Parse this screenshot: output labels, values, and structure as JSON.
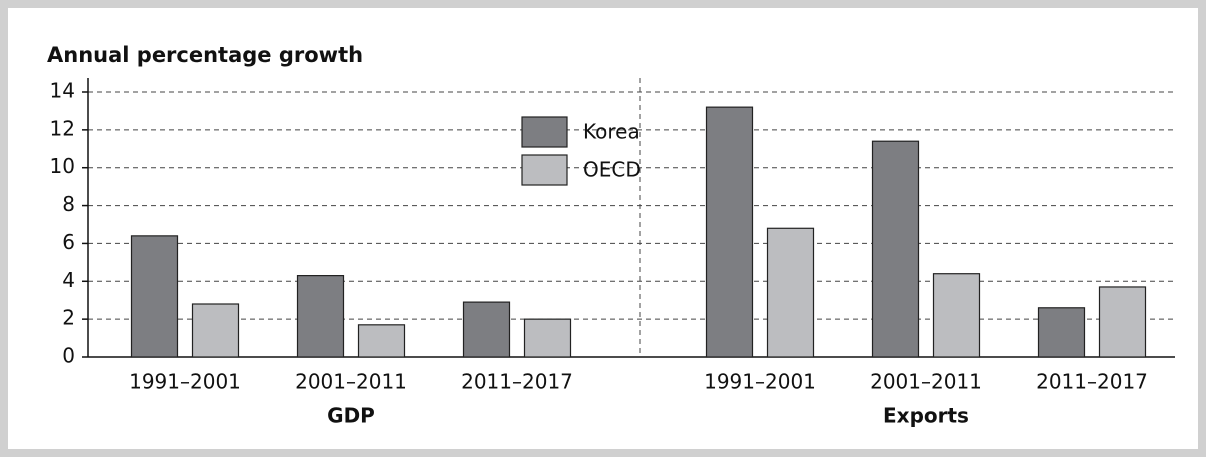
{
  "chart_data": {
    "type": "bar",
    "title": "Annual percentage growth",
    "groups": [
      "GDP",
      "Exports"
    ],
    "categories": [
      [
        "1991–2001",
        "2001–2011",
        "2011–2017"
      ],
      [
        "1991–2001",
        "2001–2011",
        "2011–2017"
      ]
    ],
    "series": [
      {
        "name": "Korea",
        "color": "#7d7e82",
        "values": [
          [
            6.4,
            4.3,
            2.9
          ],
          [
            13.2,
            11.4,
            2.6
          ]
        ]
      },
      {
        "name": "OECD",
        "color": "#bcbdc0",
        "values": [
          [
            2.8,
            1.7,
            2.0
          ],
          [
            6.8,
            4.4,
            3.7
          ]
        ]
      }
    ],
    "ylim": [
      0,
      14
    ],
    "yticks": [
      0,
      2,
      4,
      6,
      8,
      10,
      12,
      14
    ],
    "grid": true,
    "legend": "top"
  }
}
